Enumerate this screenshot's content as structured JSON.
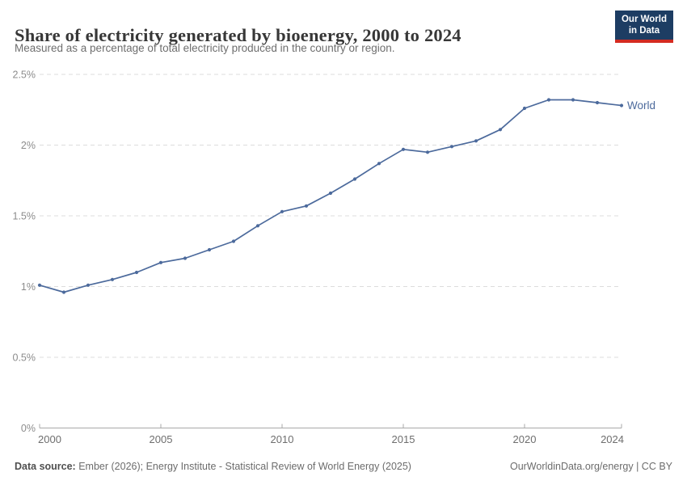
{
  "header": {
    "title": "Share of electricity generated by bioenergy, 2000 to 2024",
    "subtitle": "Measured as a percentage of total electricity produced in the country or region.",
    "logo": {
      "line1": "Our World",
      "line2": "in Data"
    }
  },
  "footer": {
    "datasource_label": "Data source:",
    "datasource_text": " Ember (2026); Energy Institute - Statistical Review of World Energy (2025)",
    "url": "OurWorldinData.org/energy",
    "separator": " | ",
    "license": "CC BY"
  },
  "colors": {
    "accent": "#4c6a9c",
    "logo_bg": "#1d3d63",
    "logo_bar": "#d42b21",
    "grid": "#dcdcdc",
    "axis": "#a8a8a8",
    "ytick_text": "#8c8c8c",
    "xtick_text": "#6e6e6e",
    "title_text": "#373737",
    "subtitle_text": "#6e6e6e",
    "footer_text": "#6c6c6c",
    "footer_label": "#4f4f4f"
  },
  "chart_data": {
    "type": "line",
    "title": "Share of electricity generated by bioenergy, 2000 to 2024",
    "xlabel": "",
    "ylabel": "Share of electricity generated by bioenergy (%)",
    "x": [
      2000,
      2001,
      2002,
      2003,
      2004,
      2005,
      2006,
      2007,
      2008,
      2009,
      2010,
      2011,
      2012,
      2013,
      2014,
      2015,
      2016,
      2017,
      2018,
      2019,
      2020,
      2021,
      2022,
      2023,
      2024
    ],
    "series": [
      {
        "name": "World",
        "color": "#4c6a9c",
        "values": [
          1.01,
          0.96,
          1.01,
          1.05,
          1.1,
          1.17,
          1.2,
          1.26,
          1.32,
          1.43,
          1.53,
          1.57,
          1.66,
          1.76,
          1.87,
          1.97,
          1.95,
          1.99,
          2.03,
          2.11,
          2.26,
          2.32,
          2.32,
          2.3,
          2.28
        ]
      }
    ],
    "ylim": [
      0,
      2.5
    ],
    "yticks": [
      {
        "value": 0,
        "label": "0%"
      },
      {
        "value": 0.5,
        "label": "0.5%"
      },
      {
        "value": 1,
        "label": "1%"
      },
      {
        "value": 1.5,
        "label": "1.5%"
      },
      {
        "value": 2,
        "label": "2%"
      },
      {
        "value": 2.5,
        "label": "2.5%"
      }
    ],
    "xticks": [
      {
        "value": 2000,
        "label": "2000"
      },
      {
        "value": 2005,
        "label": "2005"
      },
      {
        "value": 2010,
        "label": "2010"
      },
      {
        "value": 2015,
        "label": "2015"
      },
      {
        "value": 2020,
        "label": "2020"
      },
      {
        "value": 2024,
        "label": "2024"
      }
    ],
    "grid": "horizontal-dashed",
    "legend_position": "end-of-line"
  }
}
